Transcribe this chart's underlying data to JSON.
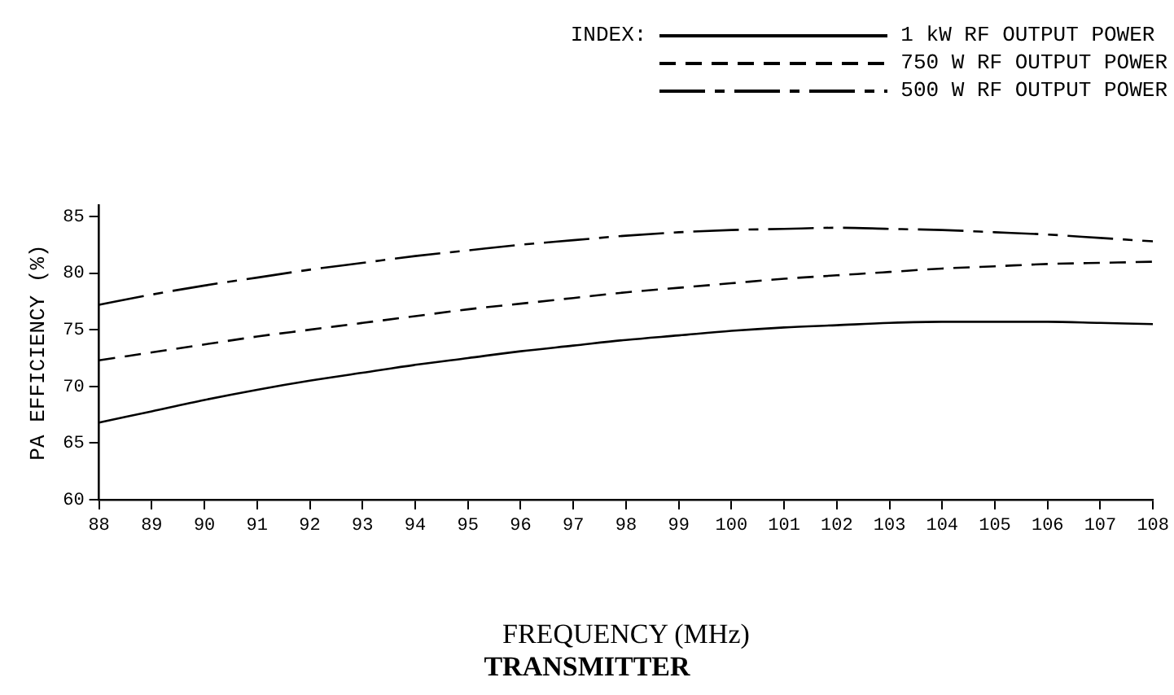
{
  "chart_data": {
    "type": "line",
    "title": "TRANSMITTER",
    "xlabel": "FREQUENCY (MHz)",
    "ylabel": "PA EFFICIENCY (%)",
    "legend_title": "INDEX:",
    "x": [
      88,
      89,
      90,
      91,
      92,
      93,
      94,
      95,
      96,
      97,
      98,
      99,
      100,
      101,
      102,
      103,
      104,
      105,
      106,
      107,
      108
    ],
    "series": [
      {
        "name": "1 kW RF OUTPUT POWER",
        "color": "#000000",
        "line_style": "solid",
        "values": [
          66.8,
          67.8,
          68.8,
          69.7,
          70.5,
          71.2,
          71.9,
          72.5,
          73.1,
          73.6,
          74.1,
          74.5,
          74.9,
          75.2,
          75.4,
          75.6,
          75.7,
          75.7,
          75.7,
          75.6,
          75.5
        ]
      },
      {
        "name": "750 W RF OUTPUT POWER",
        "color": "#000000",
        "line_style": "dashed",
        "values": [
          72.3,
          73.0,
          73.7,
          74.4,
          75.0,
          75.6,
          76.2,
          76.8,
          77.3,
          77.8,
          78.3,
          78.7,
          79.1,
          79.5,
          79.8,
          80.1,
          80.4,
          80.6,
          80.8,
          80.9,
          81.0
        ]
      },
      {
        "name": "500 W RF OUTPUT POWER",
        "color": "#000000",
        "line_style": "dashdot",
        "values": [
          77.2,
          78.1,
          78.9,
          79.6,
          80.3,
          80.9,
          81.5,
          82.0,
          82.5,
          82.9,
          83.3,
          83.6,
          83.8,
          83.9,
          84.0,
          83.9,
          83.8,
          83.6,
          83.4,
          83.1,
          82.8
        ]
      }
    ],
    "xlim": [
      88,
      108
    ],
    "xticks": [
      88,
      89,
      90,
      91,
      92,
      93,
      94,
      95,
      96,
      97,
      98,
      99,
      100,
      101,
      102,
      103,
      104,
      105,
      106,
      107,
      108
    ],
    "ylim": [
      60,
      86
    ],
    "yticks": [
      60,
      65,
      70,
      75,
      80,
      85
    ],
    "grid": false,
    "legend": "top right",
    "marker": "none"
  }
}
